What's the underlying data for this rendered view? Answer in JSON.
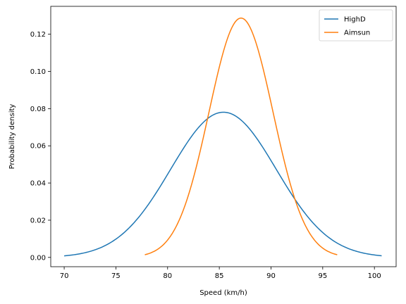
{
  "chart_data": {
    "type": "line",
    "title": "",
    "xlabel": "Speed (km/h)",
    "ylabel": "Probability density",
    "xlim": [
      68.7,
      102.1
    ],
    "ylim": [
      -0.005,
      0.135
    ],
    "xticks": [
      70,
      75,
      80,
      85,
      90,
      95,
      100
    ],
    "yticks": [
      0.0,
      0.02,
      0.04,
      0.06,
      0.08,
      0.1,
      0.12
    ],
    "xtick_labels": [
      "70",
      "75",
      "80",
      "85",
      "90",
      "95",
      "100"
    ],
    "ytick_labels": [
      "0.00",
      "0.02",
      "0.04",
      "0.06",
      "0.08",
      "0.10",
      "0.12"
    ],
    "grid": false,
    "legend_position": "top-right",
    "series": [
      {
        "name": "HighD",
        "color": "#1f77b4",
        "distribution": "normal",
        "mean": 85.4,
        "std": 5.11,
        "x_range": [
          70.0,
          100.7
        ]
      },
      {
        "name": "Aimsun",
        "color": "#ff7f0e",
        "distribution": "normal",
        "mean": 87.1,
        "std": 3.1,
        "x_range": [
          77.8,
          96.4
        ]
      }
    ]
  }
}
